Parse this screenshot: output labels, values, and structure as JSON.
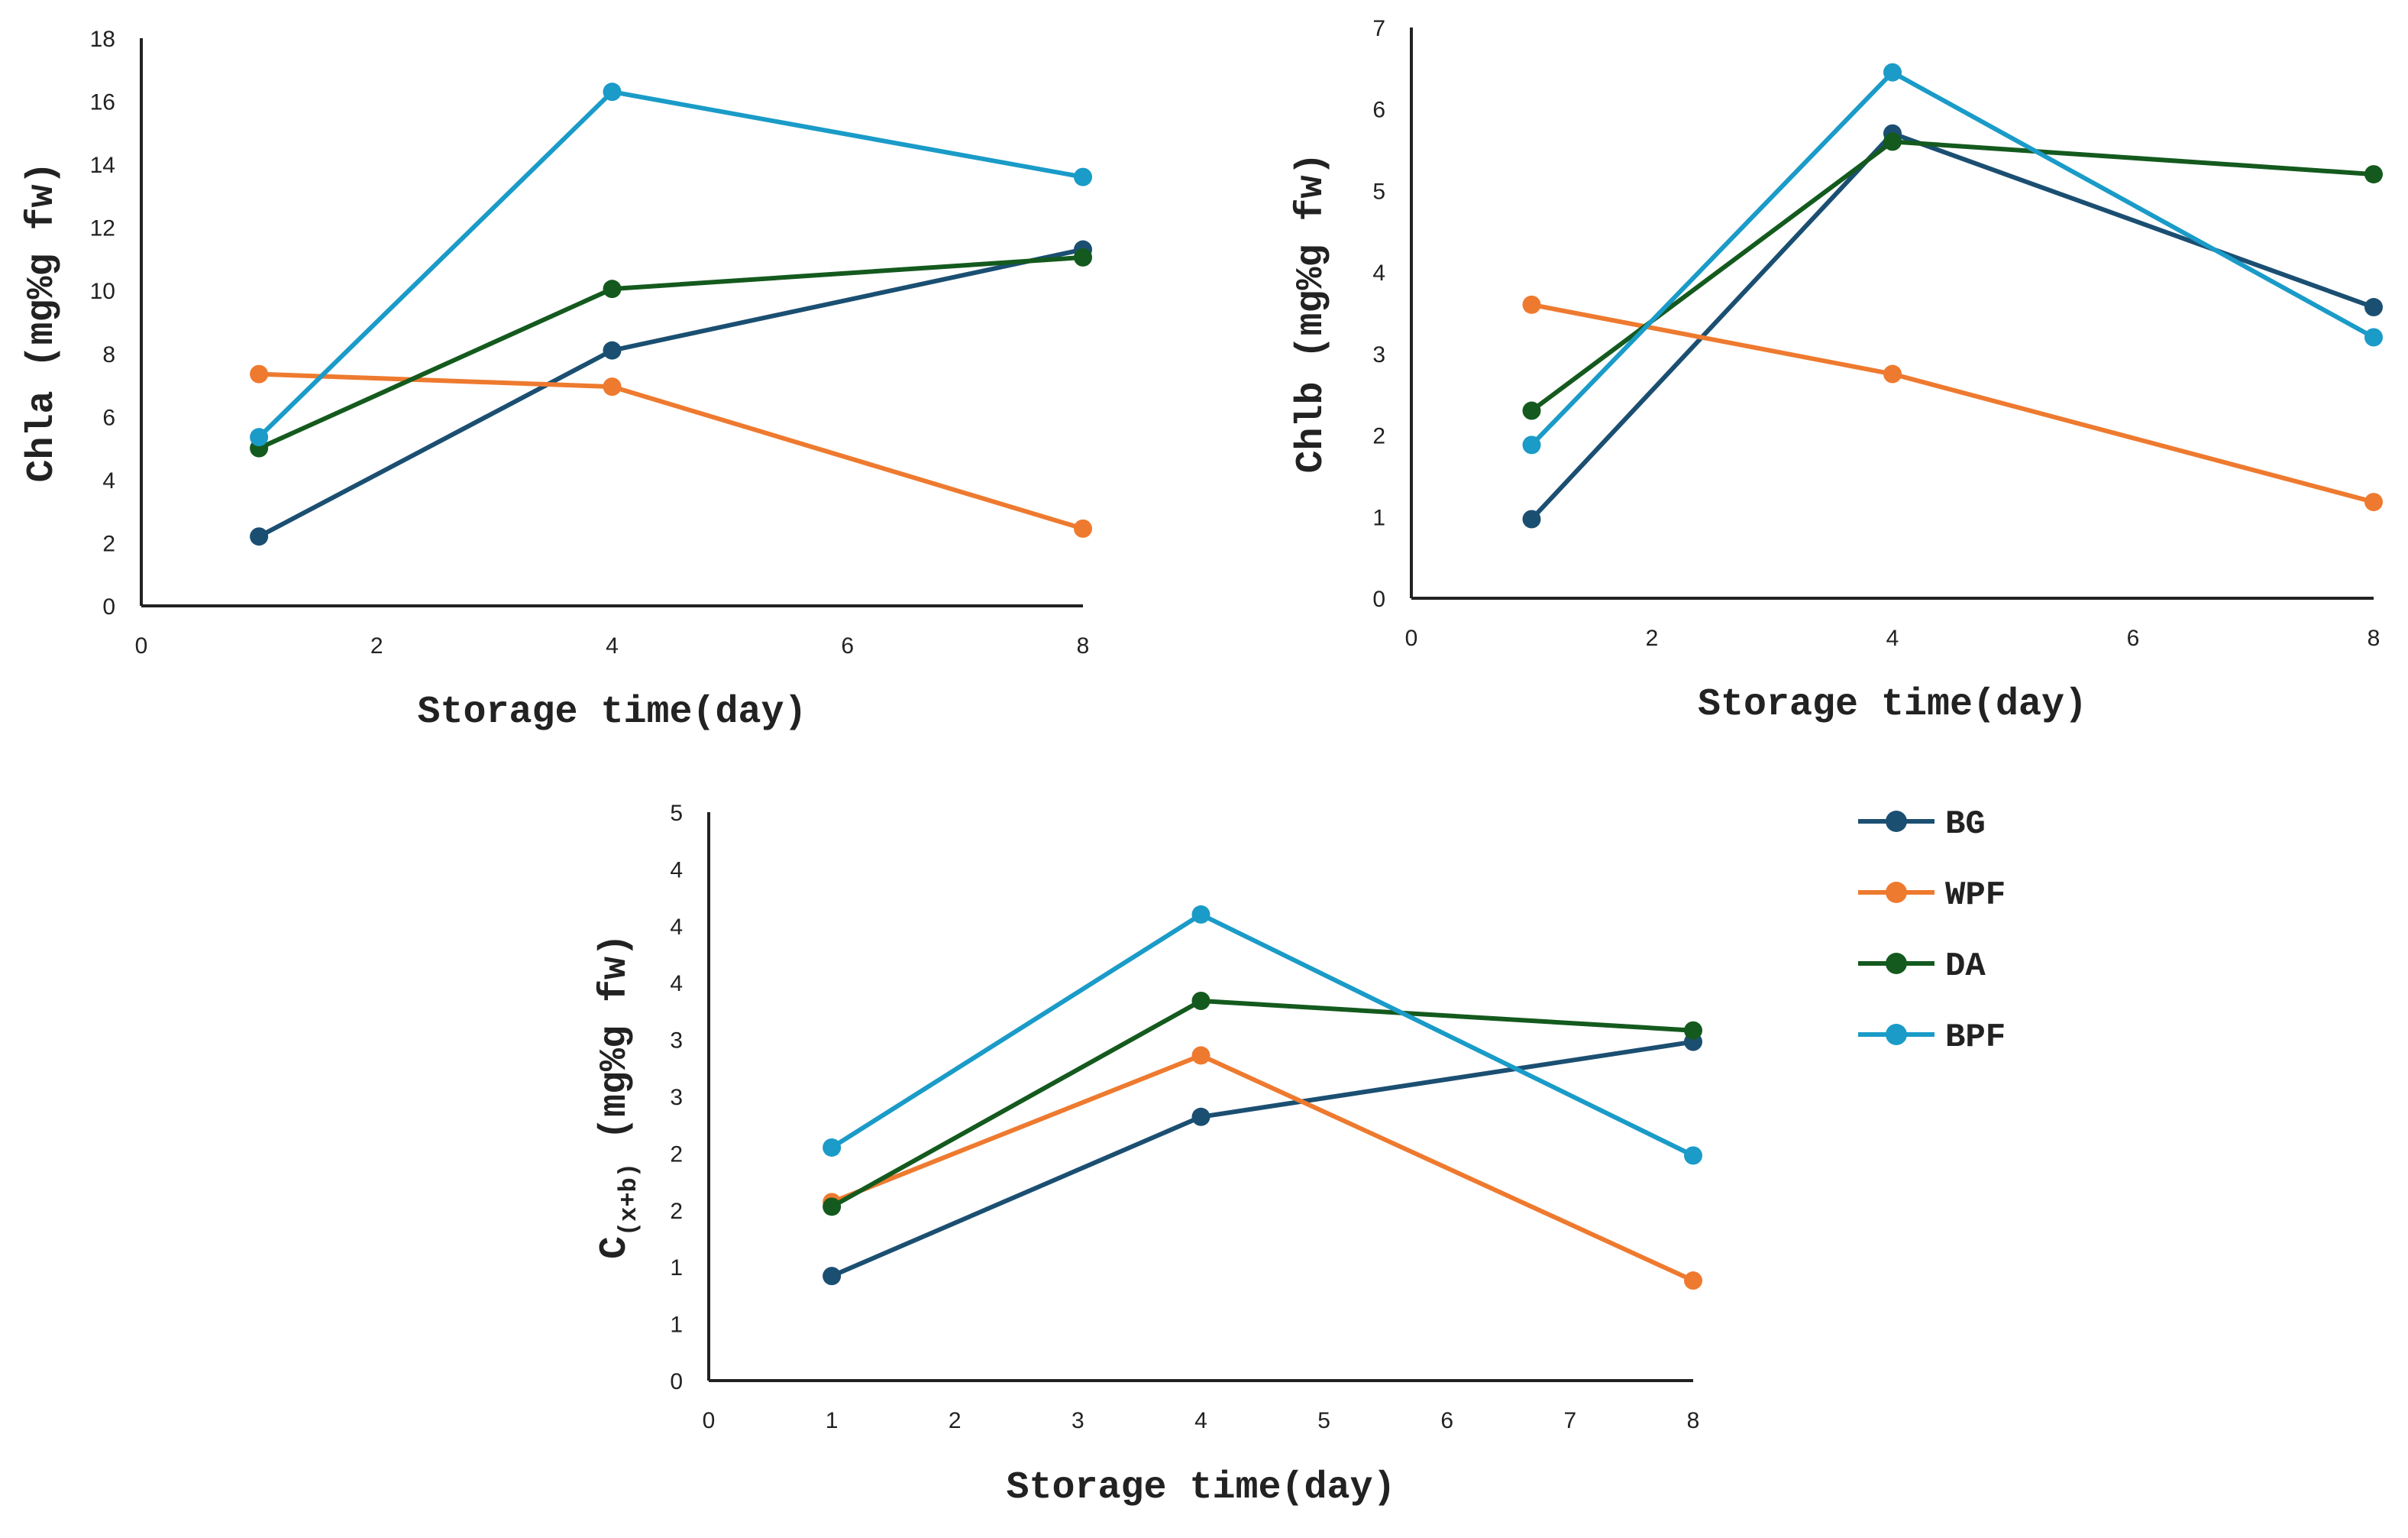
{
  "chart_data": [
    {
      "type": "line",
      "title": "",
      "xlabel": "Storage time(day)",
      "ylabel": "Chla (mg%g fw)",
      "xlim": [
        0,
        8
      ],
      "ylim": [
        0,
        18
      ],
      "x_ticks": [
        0,
        2,
        4,
        6,
        8
      ],
      "y_ticks": [
        0,
        2,
        4,
        6,
        8,
        10,
        12,
        14,
        16,
        18
      ],
      "x_tick_labels": [
        "0",
        "2",
        "4",
        "6",
        "8"
      ],
      "y_tick_labels": [
        "0",
        "2",
        "4",
        "6",
        "8",
        "10",
        "12",
        "14",
        "16",
        "18"
      ],
      "grid": false,
      "x": [
        1,
        4,
        8
      ],
      "series": [
        {
          "name": "BG",
          "values": [
            2.2,
            8.1,
            11.3
          ]
        },
        {
          "name": "WPF",
          "values": [
            7.35,
            6.95,
            2.45
          ]
        },
        {
          "name": "DA",
          "values": [
            5.0,
            10.05,
            11.05
          ]
        },
        {
          "name": "BPF",
          "values": [
            5.35,
            16.3,
            13.6
          ]
        }
      ]
    },
    {
      "type": "line",
      "title": "",
      "xlabel": "Storage time(day)",
      "ylabel": "Chlb (mg%g fw)",
      "xlim": [
        0,
        8
      ],
      "ylim": [
        0,
        7
      ],
      "x_ticks": [
        0,
        2,
        4,
        6,
        8
      ],
      "y_ticks": [
        0,
        1,
        2,
        3,
        4,
        5,
        6,
        7
      ],
      "x_tick_labels": [
        "0",
        "2",
        "4",
        "6",
        "8"
      ],
      "y_tick_labels": [
        "0",
        "1",
        "2",
        "3",
        "4",
        "5",
        "6",
        "7"
      ],
      "grid": false,
      "x": [
        1,
        4,
        8
      ],
      "series": [
        {
          "name": "BG",
          "values": [
            0.97,
            5.7,
            3.57
          ]
        },
        {
          "name": "WPF",
          "values": [
            3.6,
            2.75,
            1.18
          ]
        },
        {
          "name": "DA",
          "values": [
            2.3,
            5.6,
            5.2
          ]
        },
        {
          "name": "BPF",
          "values": [
            1.88,
            6.45,
            3.2
          ]
        }
      ]
    },
    {
      "type": "line",
      "title": "",
      "xlabel": "Storage time(day)",
      "ylabel_main": "C",
      "ylabel_sub": "(x+b)",
      "ylabel_rest": " (mg%g fw)",
      "xlim": [
        0,
        8
      ],
      "ylim": [
        0,
        5
      ],
      "x_ticks": [
        0,
        1,
        2,
        3,
        4,
        5,
        6,
        7,
        8
      ],
      "y_ticks": [
        0,
        0.5,
        1,
        1.5,
        2,
        2.5,
        3,
        3.5,
        4,
        4.5,
        5
      ],
      "x_tick_labels": [
        "0",
        "1",
        "2",
        "3",
        "4",
        "5",
        "6",
        "7",
        "8"
      ],
      "y_tick_labels": [
        "0",
        "1",
        "1",
        "2",
        "2",
        "3",
        "3",
        "4",
        "4",
        "4",
        "5"
      ],
      "grid": false,
      "x": [
        1,
        4,
        8
      ],
      "series": [
        {
          "name": "BG",
          "values": [
            0.92,
            2.32,
            2.98
          ]
        },
        {
          "name": "WPF",
          "values": [
            1.57,
            2.86,
            0.88
          ]
        },
        {
          "name": "DA",
          "values": [
            1.53,
            3.34,
            3.08
          ]
        },
        {
          "name": "BPF",
          "values": [
            2.05,
            4.1,
            1.98
          ]
        }
      ]
    }
  ],
  "legend": {
    "position": "right",
    "items": [
      {
        "name": "BG",
        "color": "#1b4f72"
      },
      {
        "name": "WPF",
        "color": "#ee7a2f"
      },
      {
        "name": "DA",
        "color": "#145a1e"
      },
      {
        "name": "BPF",
        "color": "#1a9bc8"
      }
    ]
  }
}
